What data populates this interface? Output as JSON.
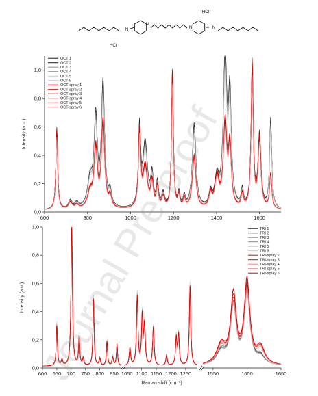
{
  "structure": {
    "labels": [
      "HCl",
      "N",
      "N",
      "N",
      "N",
      "HCl"
    ]
  },
  "watermark": "Journal Pre-proof",
  "colors": {
    "dark": "#1a1a1a",
    "mid": "#8a8a8a",
    "light": "#c8c8c8",
    "red": "#e00000",
    "lightred": "#f08080"
  },
  "chart_data": [
    {
      "type": "line",
      "xlabel": "",
      "ylabel": "Intensity (a.u.)",
      "xlim": [
        600,
        1700
      ],
      "ylim": [
        0,
        1.1
      ],
      "xticks": [
        "600",
        "800",
        "1000",
        "1200",
        "1400",
        "1600"
      ],
      "yticks": [
        "0,0",
        "0,2",
        "0,4",
        "0,6",
        "0,8",
        "1,0"
      ],
      "legend_position": "top-left",
      "peaks": [
        {
          "x": 657,
          "h": [
            0.58,
            0.57
          ],
          "w": 5
        },
        {
          "x": 720,
          "h": [
            0.06,
            0.05
          ],
          "w": 10
        },
        {
          "x": 750,
          "h": [
            0.04,
            0.03
          ],
          "w": 10
        },
        {
          "x": 812,
          "h": [
            0.2,
            0.12
          ],
          "w": 14
        },
        {
          "x": 838,
          "h": [
            0.62,
            0.42
          ],
          "w": 9
        },
        {
          "x": 872,
          "h": [
            0.88,
            0.62
          ],
          "w": 9
        },
        {
          "x": 905,
          "h": [
            0.1,
            0.08
          ],
          "w": 8
        },
        {
          "x": 1042,
          "h": [
            0.55,
            0.54
          ],
          "w": 6
        },
        {
          "x": 1068,
          "h": [
            0.46,
            0.3
          ],
          "w": 13
        },
        {
          "x": 1100,
          "h": [
            0.22,
            0.18
          ],
          "w": 7
        },
        {
          "x": 1125,
          "h": [
            0.17,
            0.15
          ],
          "w": 6
        },
        {
          "x": 1152,
          "h": [
            0.1,
            0.08
          ],
          "w": 8
        },
        {
          "x": 1195,
          "h": [
            0.98,
            0.98
          ],
          "w": 5
        },
        {
          "x": 1225,
          "h": [
            0.1,
            0.09
          ],
          "w": 6
        },
        {
          "x": 1250,
          "h": [
            0.08,
            0.07
          ],
          "w": 6
        },
        {
          "x": 1296,
          "h": [
            0.6,
            0.38
          ],
          "w": 10
        },
        {
          "x": 1372,
          "h": [
            0.1,
            0.1
          ],
          "w": 8
        },
        {
          "x": 1402,
          "h": [
            0.2,
            0.22
          ],
          "w": 12
        },
        {
          "x": 1440,
          "h": [
            1.06,
            0.6
          ],
          "w": 10
        },
        {
          "x": 1462,
          "h": [
            0.75,
            0.42
          ],
          "w": 8
        },
        {
          "x": 1520,
          "h": [
            0.12,
            0.1
          ],
          "w": 6
        },
        {
          "x": 1566,
          "h": [
            1.03,
            1.02
          ],
          "w": 6
        },
        {
          "x": 1600,
          "h": [
            0.52,
            0.5
          ],
          "w": 8
        },
        {
          "x": 1652,
          "h": [
            0.64,
            0.25
          ],
          "w": 6
        }
      ],
      "series": [
        {
          "name": "OCT 1",
          "group": "dark",
          "scale": 1.0
        },
        {
          "name": "OCT 2",
          "group": "dark",
          "scale": 0.97
        },
        {
          "name": "OCT 3",
          "group": "mid",
          "scale": 0.93
        },
        {
          "name": "OCT 4",
          "group": "mid",
          "scale": 0.9
        },
        {
          "name": "OCT 5",
          "group": "light",
          "scale": 0.88
        },
        {
          "name": "OCT 6",
          "group": "light",
          "scale": 0.85
        },
        {
          "name": "OCT-spray 1",
          "group": "red",
          "scale": 1.0
        },
        {
          "name": "OCT-spray 2",
          "group": "red",
          "scale": 0.97
        },
        {
          "name": "OCT-spray 3",
          "group": "red",
          "scale": 0.95
        },
        {
          "name": "OCT-spray 4",
          "group": "red",
          "scale": 0.92
        },
        {
          "name": "OCT-spray 5",
          "group": "lightred",
          "scale": 0.9
        },
        {
          "name": "OCT-spray 6",
          "group": "lightred",
          "scale": 0.88
        }
      ]
    },
    {
      "type": "line",
      "xlabel": "Raman shift (cm⁻¹)",
      "ylabel": "Intensity (a.u.)",
      "ylim": [
        0,
        1.0
      ],
      "yticks": [
        "0,0",
        "0,2",
        "0,4",
        "0,6",
        "0,8",
        "1,0"
      ],
      "broken_x_axis": [
        {
          "xlim": [
            600,
            875
          ],
          "ticks": [
            "600",
            "650",
            "700",
            "750",
            "800",
            "850"
          ]
        },
        {
          "xlim": [
            1040,
            1290
          ],
          "ticks": [
            "1050",
            "1100",
            "1150",
            "1200",
            "1250"
          ]
        },
        {
          "xlim": [
            1535,
            1650
          ],
          "ticks": [
            "1550",
            "1600",
            "1650"
          ]
        }
      ],
      "legend_position": "top-right",
      "peaks": [
        {
          "x": 650,
          "h": [
            0.3,
            0.28
          ],
          "w": 2.5
        },
        {
          "x": 668,
          "h": [
            0.05,
            0.04
          ],
          "w": 3
        },
        {
          "x": 702,
          "h": [
            0.99,
            0.98
          ],
          "w": 3
        },
        {
          "x": 728,
          "h": [
            0.21,
            0.2
          ],
          "w": 2.5
        },
        {
          "x": 742,
          "h": [
            0.06,
            0.05
          ],
          "w": 3
        },
        {
          "x": 778,
          "h": [
            0.48,
            0.47
          ],
          "w": 2.5
        },
        {
          "x": 800,
          "h": [
            0.06,
            0.05
          ],
          "w": 3
        },
        {
          "x": 825,
          "h": [
            0.18,
            0.17
          ],
          "w": 2.5
        },
        {
          "x": 845,
          "h": [
            0.07,
            0.06
          ],
          "w": 3
        },
        {
          "x": 860,
          "h": [
            0.16,
            0.15
          ],
          "w": 2.5
        },
        {
          "x": 1060,
          "h": [
            0.13,
            0.12
          ],
          "w": 3
        },
        {
          "x": 1085,
          "h": [
            0.5,
            0.48
          ],
          "w": 3
        },
        {
          "x": 1102,
          "h": [
            0.35,
            0.34
          ],
          "w": 3
        },
        {
          "x": 1110,
          "h": [
            0.28,
            0.27
          ],
          "w": 3
        },
        {
          "x": 1140,
          "h": [
            0.28,
            0.27
          ],
          "w": 3
        },
        {
          "x": 1185,
          "h": [
            0.08,
            0.07
          ],
          "w": 3
        },
        {
          "x": 1218,
          "h": [
            0.2,
            0.19
          ],
          "w": 3
        },
        {
          "x": 1226,
          "h": [
            0.22,
            0.21
          ],
          "w": 3
        },
        {
          "x": 1265,
          "h": [
            0.57,
            0.56
          ],
          "w": 3
        },
        {
          "x": 1562,
          "h": [
            0.1,
            0.14
          ],
          "w": 8
        },
        {
          "x": 1580,
          "h": [
            0.44,
            0.48
          ],
          "w": 5
        },
        {
          "x": 1600,
          "h": [
            0.55,
            0.58
          ],
          "w": 5
        },
        {
          "x": 1620,
          "h": [
            0.06,
            0.12
          ],
          "w": 7
        }
      ],
      "series": [
        {
          "name": "TRI 1",
          "group": "dark",
          "scale": 1.0
        },
        {
          "name": "TRI 2",
          "group": "dark",
          "scale": 0.95
        },
        {
          "name": "TRI 3",
          "group": "mid",
          "scale": 0.92
        },
        {
          "name": "TRI 4",
          "group": "mid",
          "scale": 0.9
        },
        {
          "name": "TRI 5",
          "group": "light",
          "scale": 0.88
        },
        {
          "name": "TRI 6",
          "group": "light",
          "scale": 1.05
        },
        {
          "name": "TRI-spray 2",
          "group": "red",
          "scale": 1.0
        },
        {
          "name": "TRI-spray 3",
          "group": "red",
          "scale": 0.95
        },
        {
          "name": "TRI-spray 4",
          "group": "lightred",
          "scale": 0.9
        },
        {
          "name": "TRI-spray 5",
          "group": "lightred",
          "scale": 0.85
        },
        {
          "name": "TRI-spray 6",
          "group": "red",
          "scale": 1.02
        }
      ]
    }
  ]
}
